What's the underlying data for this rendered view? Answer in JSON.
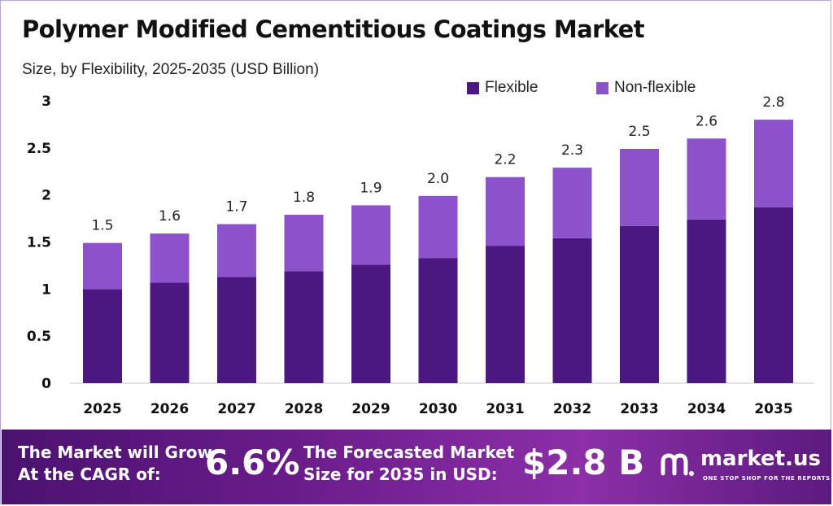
{
  "chart_data": {
    "type": "bar",
    "stacked": true,
    "title": "Polymer Modified Cementitious Coatings Market",
    "subtitle": "Size, by Flexibility, 2025-2035 (USD Billion)",
    "categories": [
      "2025",
      "2026",
      "2027",
      "2028",
      "2029",
      "2030",
      "2031",
      "2032",
      "2033",
      "2034",
      "2035"
    ],
    "series": [
      {
        "name": "Flexible",
        "color": "#4b1780",
        "values": [
          1.0,
          1.07,
          1.13,
          1.19,
          1.26,
          1.33,
          1.46,
          1.54,
          1.67,
          1.74,
          1.87
        ]
      },
      {
        "name": "Non-flexible",
        "color": "#8b52cc",
        "values": [
          0.49,
          0.52,
          0.56,
          0.6,
          0.63,
          0.66,
          0.73,
          0.75,
          0.82,
          0.86,
          0.93
        ]
      }
    ],
    "totals": [
      "1.5",
      "1.6",
      "1.7",
      "1.8",
      "1.9",
      "2.0",
      "2.2",
      "2.3",
      "2.5",
      "2.6",
      "2.8"
    ],
    "ylim": [
      0,
      3
    ],
    "yticks": [
      "0",
      "0.5",
      "1",
      "1.5",
      "2",
      "2.5",
      "3"
    ],
    "legend_position": "top-right",
    "grid": false
  },
  "footer": {
    "cagr_label_line1": "The Market will Grow",
    "cagr_label_line2": "At the CAGR of:",
    "cagr_value": "6.6%",
    "forecast_label_line1": "The Forecasted Market",
    "forecast_label_line2": "Size for 2035 in USD:",
    "forecast_value": "$2.8 B",
    "brand_name": "market.us",
    "brand_tagline": "ONE STOP SHOP FOR THE REPORTS"
  }
}
